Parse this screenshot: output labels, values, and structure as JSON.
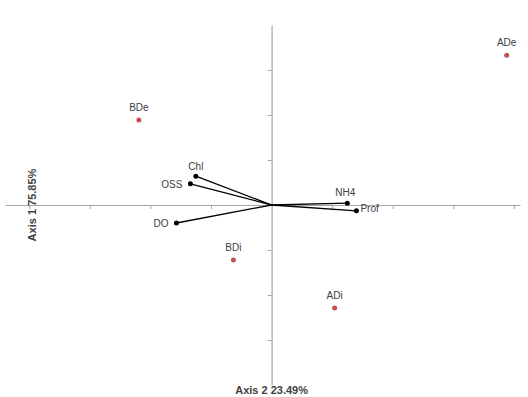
{
  "chart_data": {
    "type": "scatter",
    "x_label": "Axis 2 23.49%",
    "y_label": "Axis 1 75.85%",
    "xlim": [
      -4.4,
      4.1
    ],
    "ylim": [
      -4,
      4
    ],
    "xticks": [
      -4,
      -3,
      -2,
      -1,
      1,
      2,
      3,
      4
    ],
    "yticks": [
      -3,
      -2,
      -1,
      1,
      2,
      3
    ],
    "grid": false,
    "tick_labels": false,
    "series": [
      {
        "type": "scatter",
        "color": "#c0504d",
        "marker": "circle",
        "labels": [
          "BDe",
          "ADe",
          "BDi",
          "ADi"
        ],
        "x": [
          -2.19,
          3.88,
          -0.63,
          1.04
        ],
        "values": [
          1.89,
          3.33,
          -1.22,
          -2.29
        ]
      },
      {
        "type": "vector",
        "color": "#000000",
        "marker": "circle",
        "labels": [
          "Chl",
          "OSS",
          "DO",
          "NH4",
          "Prof"
        ],
        "x": [
          -1.25,
          -1.34,
          -1.57,
          1.25,
          1.4
        ],
        "values": [
          0.64,
          0.47,
          -0.4,
          0.04,
          -0.13
        ]
      }
    ]
  }
}
